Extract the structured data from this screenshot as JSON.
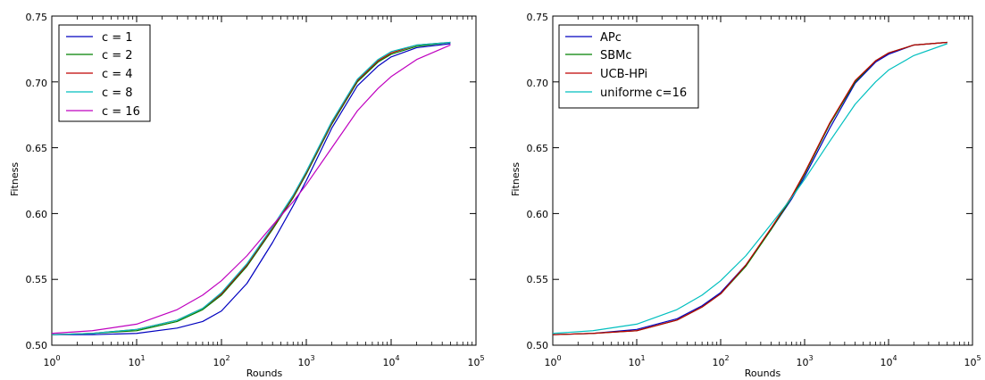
{
  "chart_data": [
    {
      "type": "line",
      "title": "",
      "xlabel": "Rounds",
      "ylabel": "Fitness",
      "xscale": "log",
      "xlim": [
        1,
        100000
      ],
      "ylim": [
        0.5,
        0.75
      ],
      "xticks": [
        "10",
        "10",
        "10",
        "10",
        "10",
        "10"
      ],
      "xtick_exponents": [
        "0",
        "1",
        "2",
        "3",
        "4",
        "5"
      ],
      "yticks": [
        "0.50",
        "0.55",
        "0.60",
        "0.65",
        "0.70",
        "0.75"
      ],
      "legend": "top-left",
      "grid": false,
      "series": [
        {
          "name": "c = 1",
          "color": "#0000bf",
          "x": [
            1,
            3,
            10,
            30,
            60,
            100,
            200,
            400,
            700,
            1000,
            2000,
            4000,
            7000,
            10000,
            20000,
            50000
          ],
          "y": [
            0.508,
            0.508,
            0.509,
            0.513,
            0.518,
            0.526,
            0.547,
            0.578,
            0.606,
            0.625,
            0.665,
            0.697,
            0.712,
            0.719,
            0.726,
            0.729
          ]
        },
        {
          "name": "c = 2",
          "color": "#008000",
          "x": [
            1,
            3,
            10,
            30,
            60,
            100,
            200,
            400,
            700,
            1000,
            2000,
            4000,
            7000,
            10000,
            20000,
            50000
          ],
          "y": [
            0.508,
            0.509,
            0.511,
            0.518,
            0.527,
            0.538,
            0.56,
            0.588,
            0.612,
            0.63,
            0.668,
            0.7,
            0.715,
            0.721,
            0.727,
            0.73
          ]
        },
        {
          "name": "c = 4",
          "color": "#bf0000",
          "x": [
            1,
            3,
            10,
            30,
            60,
            100,
            200,
            400,
            700,
            1000,
            2000,
            4000,
            7000,
            10000,
            20000,
            50000
          ],
          "y": [
            0.508,
            0.509,
            0.512,
            0.519,
            0.528,
            0.539,
            0.561,
            0.589,
            0.613,
            0.631,
            0.669,
            0.701,
            0.716,
            0.722,
            0.728,
            0.73
          ]
        },
        {
          "name": "c = 8",
          "color": "#00bfbf",
          "x": [
            1,
            3,
            10,
            30,
            60,
            100,
            200,
            400,
            700,
            1000,
            2000,
            4000,
            7000,
            10000,
            20000,
            50000
          ],
          "y": [
            0.508,
            0.509,
            0.512,
            0.519,
            0.528,
            0.54,
            0.562,
            0.59,
            0.614,
            0.632,
            0.67,
            0.702,
            0.717,
            0.723,
            0.728,
            0.73
          ]
        },
        {
          "name": "c = 16",
          "color": "#bf00bf",
          "x": [
            1,
            3,
            10,
            30,
            60,
            100,
            200,
            400,
            700,
            1000,
            2000,
            4000,
            7000,
            10000,
            20000,
            50000
          ],
          "y": [
            0.509,
            0.511,
            0.516,
            0.527,
            0.538,
            0.549,
            0.568,
            0.591,
            0.609,
            0.622,
            0.65,
            0.678,
            0.695,
            0.704,
            0.717,
            0.728
          ]
        }
      ]
    },
    {
      "type": "line",
      "title": "",
      "xlabel": "Rounds",
      "ylabel": "Fitness",
      "xscale": "log",
      "xlim": [
        1,
        100000
      ],
      "ylim": [
        0.5,
        0.75
      ],
      "xticks": [
        "10",
        "10",
        "10",
        "10",
        "10",
        "10"
      ],
      "xtick_exponents": [
        "0",
        "1",
        "2",
        "3",
        "4",
        "5"
      ],
      "yticks": [
        "0.50",
        "0.55",
        "0.60",
        "0.65",
        "0.70",
        "0.75"
      ],
      "legend": "top-left",
      "grid": false,
      "series": [
        {
          "name": "APc",
          "color": "#0000bf",
          "x": [
            1,
            3,
            10,
            30,
            60,
            100,
            200,
            400,
            700,
            1000,
            2000,
            4000,
            7000,
            10000,
            20000,
            50000
          ],
          "y": [
            0.508,
            0.509,
            0.512,
            0.52,
            0.53,
            0.54,
            0.561,
            0.588,
            0.611,
            0.628,
            0.665,
            0.699,
            0.715,
            0.721,
            0.728,
            0.73
          ]
        },
        {
          "name": "SBMc",
          "color": "#008000",
          "x": [
            1,
            3,
            10,
            30,
            60,
            100,
            200,
            400,
            700,
            1000,
            2000,
            4000,
            7000,
            10000,
            20000,
            50000
          ],
          "y": [
            0.508,
            0.509,
            0.511,
            0.519,
            0.529,
            0.539,
            0.56,
            0.588,
            0.612,
            0.63,
            0.668,
            0.7,
            0.716,
            0.722,
            0.728,
            0.73
          ]
        },
        {
          "name": "UCB-HPi",
          "color": "#bf0000",
          "x": [
            1,
            3,
            10,
            30,
            60,
            100,
            200,
            400,
            700,
            1000,
            2000,
            4000,
            7000,
            10000,
            20000,
            50000
          ],
          "y": [
            0.508,
            0.509,
            0.511,
            0.519,
            0.529,
            0.539,
            0.561,
            0.589,
            0.613,
            0.631,
            0.669,
            0.701,
            0.716,
            0.722,
            0.728,
            0.73
          ]
        },
        {
          "name": "uniforme c=16",
          "color": "#00bfbf",
          "x": [
            1,
            3,
            10,
            30,
            60,
            100,
            200,
            400,
            700,
            1000,
            2000,
            4000,
            7000,
            10000,
            20000,
            50000
          ],
          "y": [
            0.509,
            0.511,
            0.516,
            0.527,
            0.538,
            0.549,
            0.568,
            0.592,
            0.612,
            0.626,
            0.655,
            0.683,
            0.7,
            0.709,
            0.72,
            0.729
          ]
        }
      ]
    }
  ]
}
